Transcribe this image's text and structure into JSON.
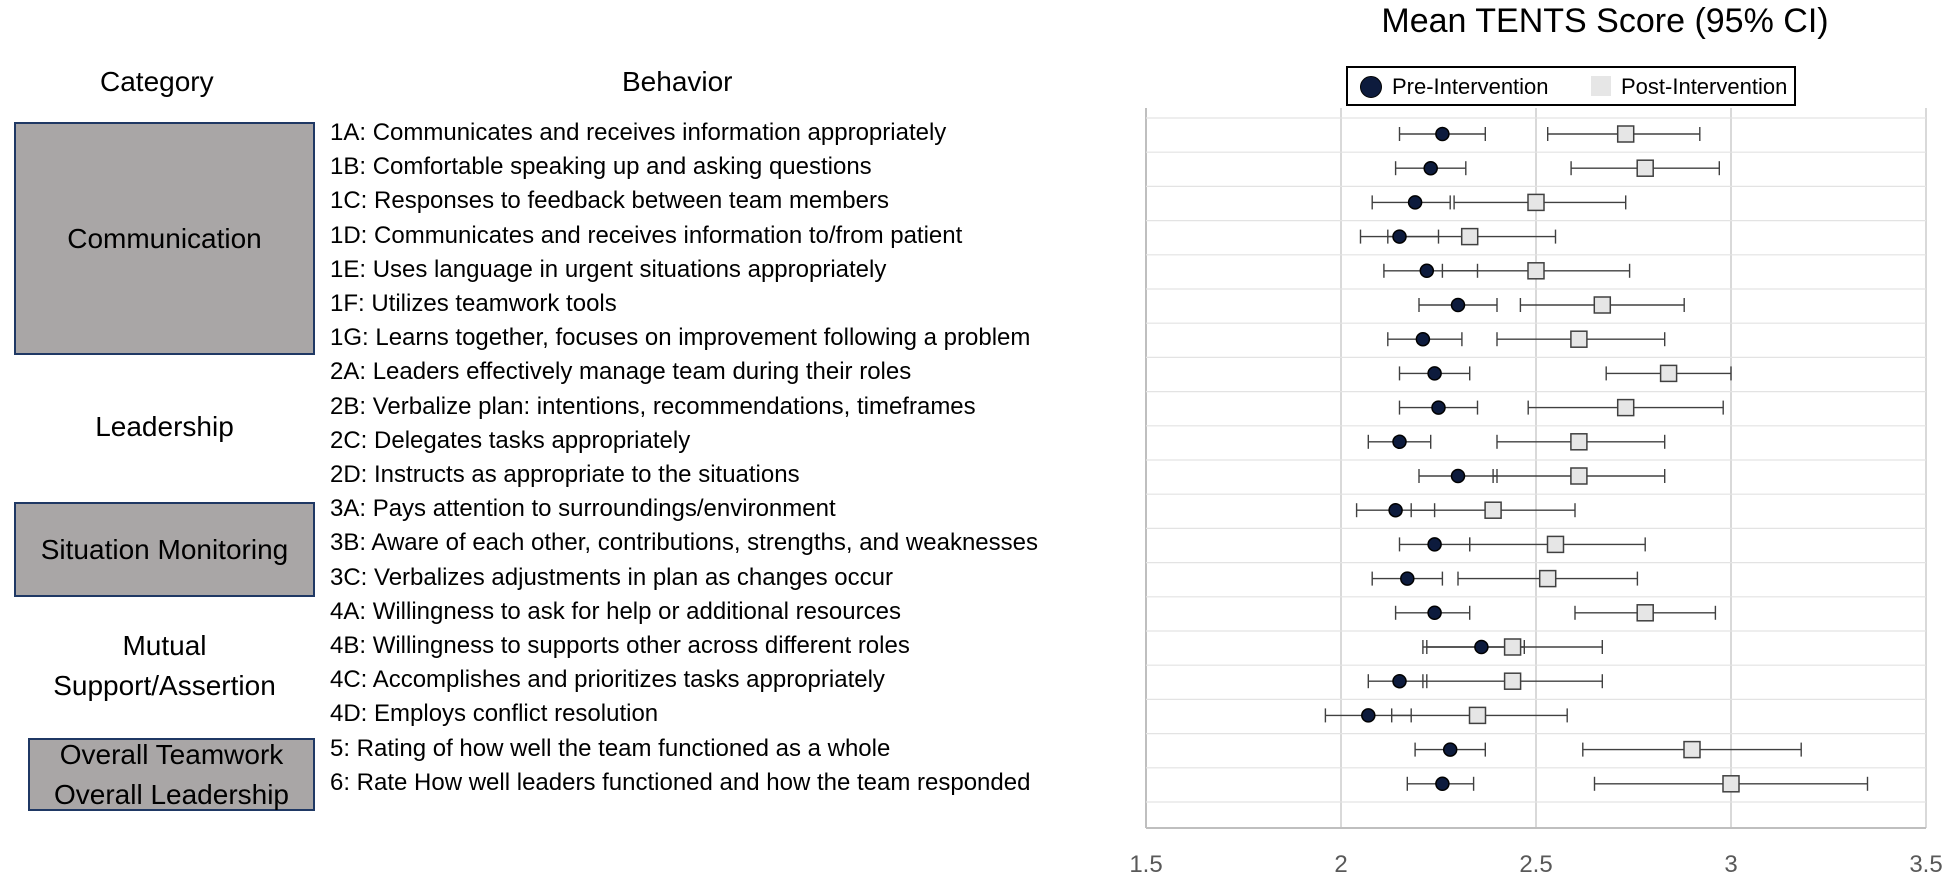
{
  "chart_data": {
    "type": "scatter",
    "title": "Mean TENTS Score (95% CI)",
    "category_header": "Category",
    "behavior_header": "Behavior",
    "xlim": [
      1.5,
      3.5
    ],
    "xticks": [
      "1.5",
      "2",
      "2.5",
      "3",
      "3.5"
    ],
    "grid": true,
    "legend_position": "top",
    "legend": [
      "Pre-Intervention",
      "Post-Intervention"
    ],
    "colors": {
      "pre": "#0d1b3d",
      "post": "#e6e6e6",
      "category_box": "#a9a6a6",
      "box_border": "#1f3864"
    },
    "categories": [
      {
        "label": "Communication",
        "lines": [
          "Communication"
        ],
        "shaded": true,
        "rows": [
          0,
          6
        ]
      },
      {
        "label": "Leadership",
        "lines": [
          "Leadership"
        ],
        "shaded": false,
        "rows": [
          7,
          10
        ]
      },
      {
        "label": "Situation Monitoring",
        "lines": [
          "Situation Monitoring"
        ],
        "shaded": true,
        "rows": [
          11,
          13
        ]
      },
      {
        "label": "Mutual Support/Assertion",
        "lines": [
          "Mutual",
          "Support/Assertion"
        ],
        "shaded": false,
        "rows": [
          14,
          17
        ]
      },
      {
        "label": "Overall Teamwork Overall Leadership",
        "lines": [
          "Overall Teamwork",
          "Overall Leadership"
        ],
        "shaded": true,
        "rows": [
          18,
          19
        ]
      }
    ],
    "behaviors": [
      "1A: Communicates and receives information appropriately",
      "1B: Comfortable speaking up and asking questions",
      "1C: Responses to feedback between team members",
      "1D: Communicates and receives information to/from patient",
      "1E: Uses language in urgent situations appropriately",
      "1F: Utilizes teamwork tools",
      "1G: Learns together, focuses on improvement following a problem",
      "2A: Leaders effectively manage team during their roles",
      "2B: Verbalize plan: intentions, recommendations, timeframes",
      "2C: Delegates tasks appropriately",
      "2D: Instructs as appropriate to the situations",
      "3A: Pays attention to surroundings/environment",
      "3B: Aware of each other, contributions, strengths, and weaknesses",
      "3C: Verbalizes adjustments in plan as changes occur",
      "4A: Willingness to ask for help or additional resources",
      "4B: Willingness to supports other across different roles",
      "4C: Accomplishes and prioritizes tasks appropriately",
      "4D: Employs conflict resolution",
      "5: Rating of how well the team functioned as a whole",
      "6: Rate How well leaders functioned and how the team responded"
    ],
    "series": [
      {
        "name": "Pre-Intervention",
        "values": [
          2.26,
          2.23,
          2.19,
          2.15,
          2.22,
          2.3,
          2.21,
          2.24,
          2.25,
          2.15,
          2.3,
          2.14,
          2.24,
          2.17,
          2.24,
          2.36,
          2.15,
          2.07,
          2.28,
          2.26
        ],
        "ci_low": [
          2.15,
          2.14,
          2.08,
          2.05,
          2.11,
          2.2,
          2.12,
          2.15,
          2.15,
          2.07,
          2.2,
          2.04,
          2.15,
          2.08,
          2.14,
          2.22,
          2.07,
          1.96,
          2.19,
          2.17
        ],
        "ci_high": [
          2.37,
          2.32,
          2.28,
          2.25,
          2.35,
          2.4,
          2.31,
          2.33,
          2.35,
          2.23,
          2.4,
          2.24,
          2.33,
          2.26,
          2.33,
          2.47,
          2.22,
          2.18,
          2.37,
          2.34
        ]
      },
      {
        "name": "Post-Intervention",
        "values": [
          2.73,
          2.78,
          2.5,
          2.33,
          2.5,
          2.67,
          2.61,
          2.84,
          2.73,
          2.61,
          2.61,
          2.39,
          2.55,
          2.53,
          2.78,
          2.44,
          2.44,
          2.35,
          2.9,
          3.0
        ],
        "ci_low": [
          2.53,
          2.59,
          2.29,
          2.12,
          2.26,
          2.46,
          2.4,
          2.68,
          2.48,
          2.4,
          2.39,
          2.18,
          2.33,
          2.3,
          2.6,
          2.21,
          2.21,
          2.13,
          2.62,
          2.65
        ],
        "ci_high": [
          2.92,
          2.97,
          2.73,
          2.55,
          2.74,
          2.88,
          2.83,
          3.0,
          2.98,
          2.83,
          2.83,
          2.6,
          2.78,
          2.76,
          2.96,
          2.67,
          2.67,
          2.58,
          3.18,
          3.35
        ]
      }
    ]
  }
}
